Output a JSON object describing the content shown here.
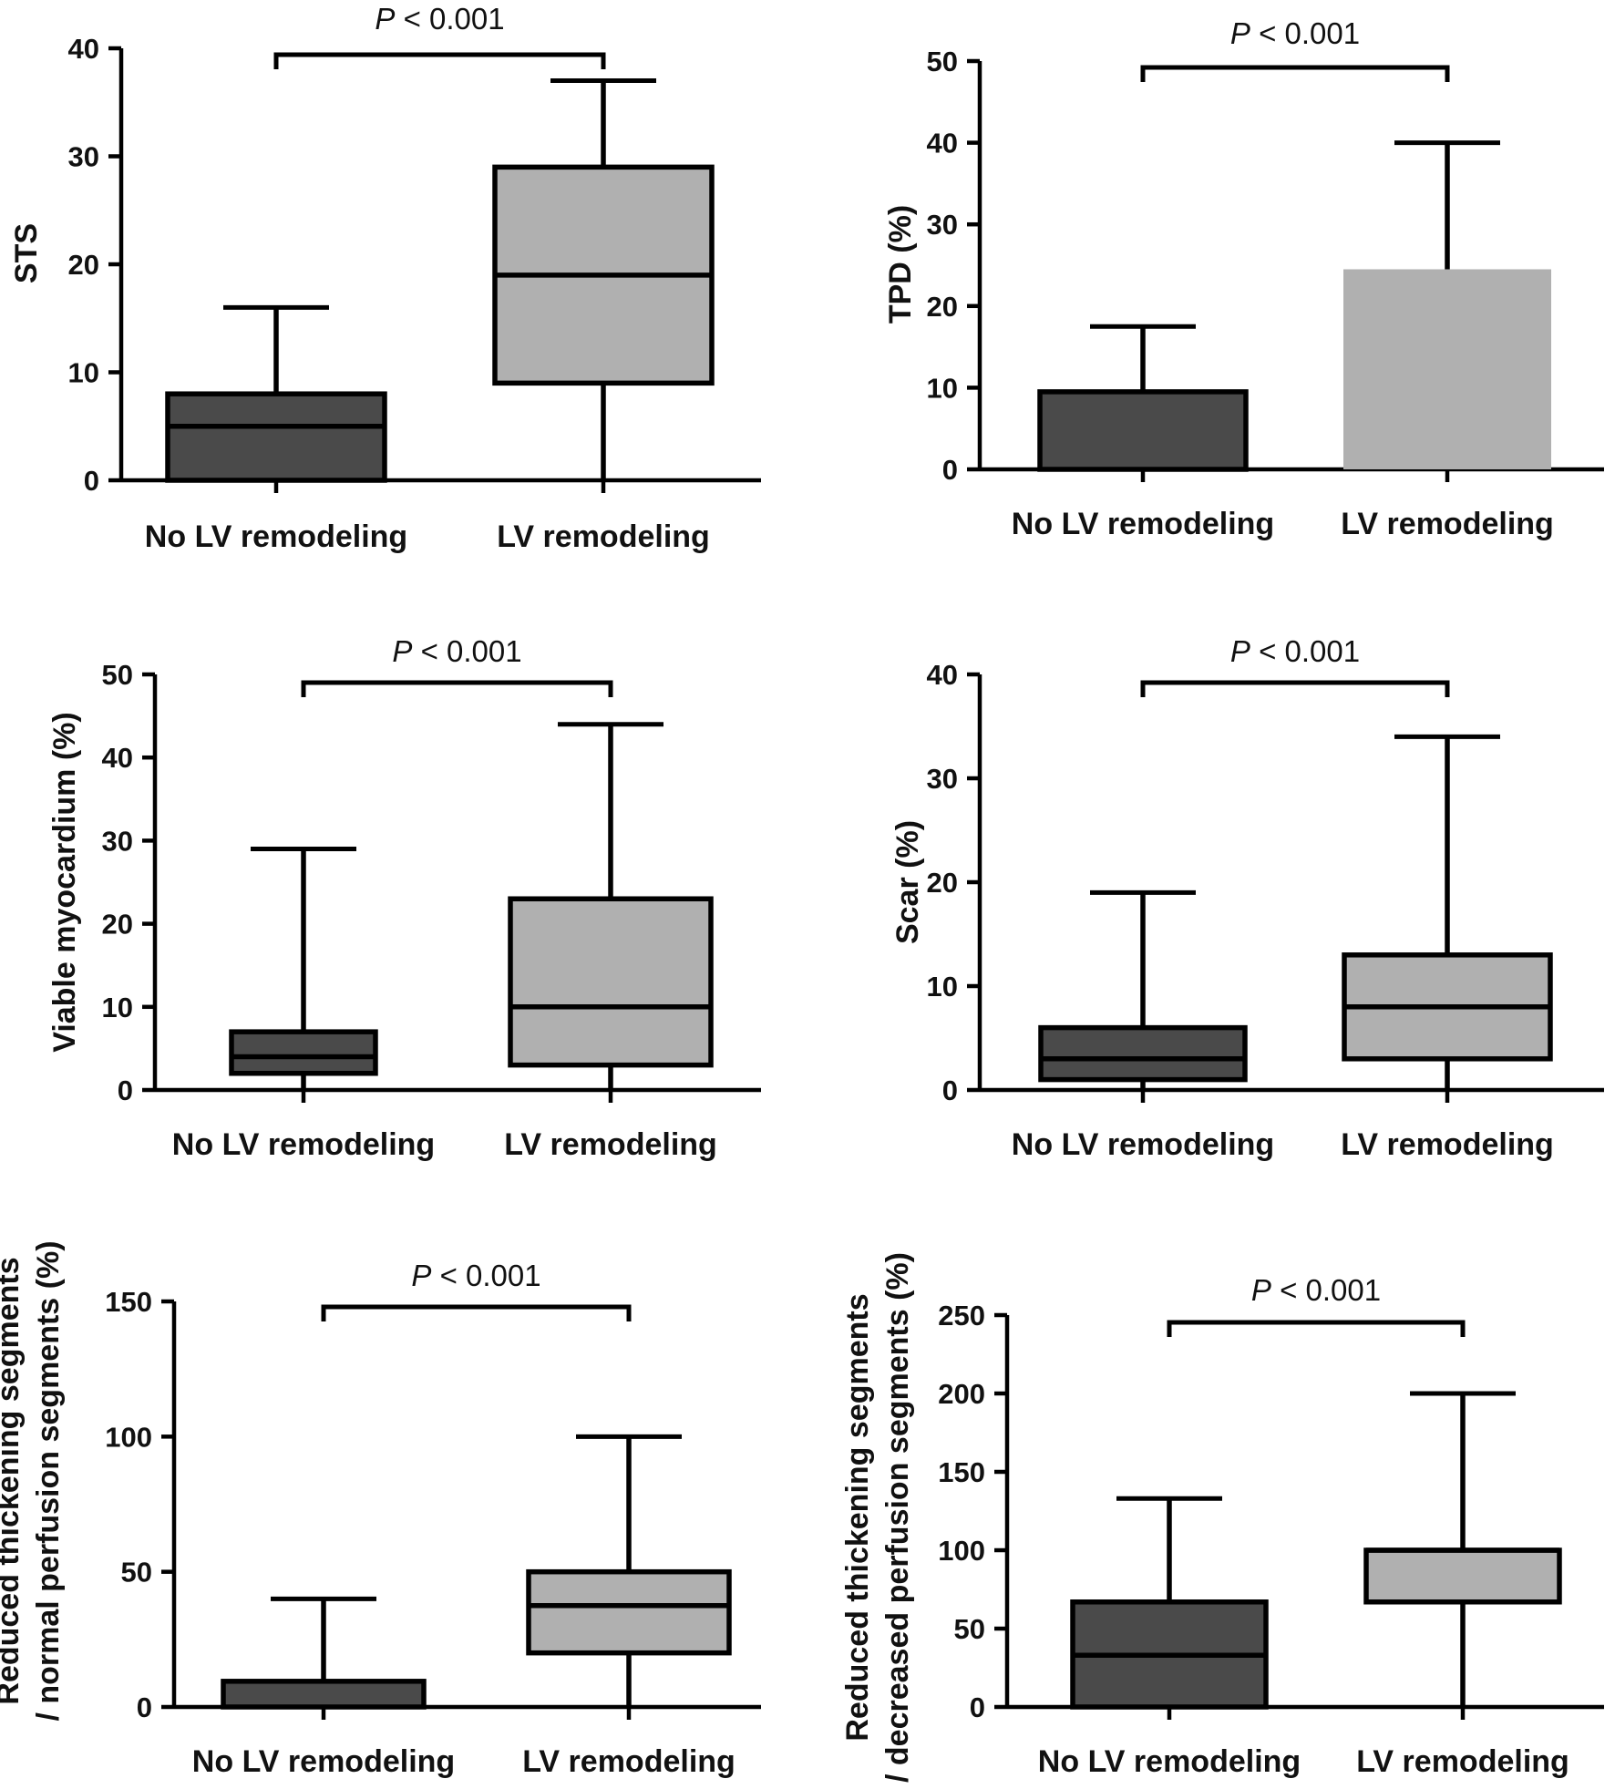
{
  "figure": {
    "colors": {
      "no_remodeling_fill": "#4a4a4a",
      "remodeling_fill": "#b0b0b0",
      "stroke": "#000000",
      "text": "#111111",
      "background": "#ffffff"
    }
  },
  "chart_data": [
    {
      "id": "sts",
      "type": "box",
      "ylabel": [
        "STS"
      ],
      "ylim": [
        0,
        40
      ],
      "yticks": [
        0,
        10,
        20,
        30,
        40
      ],
      "categories": [
        "No LV remodeling",
        "LV remodeling"
      ],
      "annotation": {
        "p_symbol": "P",
        "p_text": " < 0.001"
      },
      "series": [
        {
          "name": "No LV remodeling",
          "min": 0,
          "q1": 0,
          "median": 5,
          "q3": 8,
          "max": 16
        },
        {
          "name": "LV remodeling",
          "min": 0,
          "q1": 9,
          "median": 19,
          "q3": 29,
          "max": 37
        }
      ]
    },
    {
      "id": "tpd",
      "type": "box",
      "ylabel": [
        "TPD (%)"
      ],
      "ylim": [
        0,
        50
      ],
      "yticks": [
        0,
        10,
        20,
        30,
        40,
        50
      ],
      "categories": [
        "No LV remodeling",
        "LV remodeling"
      ],
      "annotation": {
        "p_symbol": "P",
        "p_text": " < 0.001"
      },
      "series": [
        {
          "name": "No LV remodeling",
          "min": 0,
          "q1": 0,
          "median": 0,
          "q3": 9.5,
          "max": 17.5
        },
        {
          "name": "LV remodeling",
          "min": 0,
          "q1": 0,
          "median": 0,
          "q3": 24.5,
          "max": 40
        }
      ]
    },
    {
      "id": "viable",
      "type": "box",
      "ylabel": [
        "Viable myocardium (%)"
      ],
      "ylim": [
        0,
        50
      ],
      "yticks": [
        0,
        10,
        20,
        30,
        40,
        50
      ],
      "categories": [
        "No LV remodeling",
        "LV remodeling"
      ],
      "annotation": {
        "p_symbol": "P",
        "p_text": " < 0.001"
      },
      "series": [
        {
          "name": "No LV remodeling",
          "min": 0,
          "q1": 2,
          "median": 4,
          "q3": 7,
          "max": 29
        },
        {
          "name": "LV remodeling",
          "min": 0,
          "q1": 3,
          "median": 10,
          "q3": 23,
          "max": 44
        }
      ]
    },
    {
      "id": "scar",
      "type": "box",
      "ylabel": [
        "Scar (%)"
      ],
      "ylim": [
        0,
        40
      ],
      "yticks": [
        0,
        10,
        20,
        30,
        40
      ],
      "categories": [
        "No LV remodeling",
        "LV remodeling"
      ],
      "annotation": {
        "p_symbol": "P",
        "p_text": " < 0.001"
      },
      "series": [
        {
          "name": "No LV remodeling",
          "min": 0,
          "q1": 1,
          "median": 3,
          "q3": 6,
          "max": 19
        },
        {
          "name": "LV remodeling",
          "min": 0,
          "q1": 3,
          "median": 8,
          "q3": 13,
          "max": 34
        }
      ]
    },
    {
      "id": "normal-perfusion",
      "type": "box",
      "ylabel": [
        "Reduced thickening segments",
        "/ normal perfusion segments (%)"
      ],
      "ylim": [
        0,
        150
      ],
      "yticks": [
        0,
        50,
        100,
        150
      ],
      "categories": [
        "No LV remodeling",
        "LV remodeling"
      ],
      "annotation": {
        "p_symbol": "P",
        "p_text": " < 0.001"
      },
      "series": [
        {
          "name": "No LV remodeling",
          "min": 0,
          "q1": 0,
          "median": 0,
          "q3": 9.5,
          "max": 40
        },
        {
          "name": "LV remodeling",
          "min": 0,
          "q1": 20,
          "median": 37.5,
          "q3": 50,
          "max": 100
        }
      ]
    },
    {
      "id": "decreased-perfusion",
      "type": "box",
      "ylabel": [
        "Reduced thickening segments",
        "/ decreased perfusion segments (%)"
      ],
      "ylim": [
        0,
        250
      ],
      "yticks": [
        0,
        50,
        100,
        150,
        200,
        250
      ],
      "categories": [
        "No LV remodeling",
        "LV remodeling"
      ],
      "annotation": {
        "p_symbol": "P",
        "p_text": " < 0.001"
      },
      "series": [
        {
          "name": "No LV remodeling",
          "min": 0,
          "q1": 0,
          "median": 33,
          "q3": 67,
          "max": 133
        },
        {
          "name": "LV remodeling",
          "min": 0,
          "q1": 67,
          "median": 100,
          "q3": 100,
          "max": 200
        }
      ]
    }
  ]
}
